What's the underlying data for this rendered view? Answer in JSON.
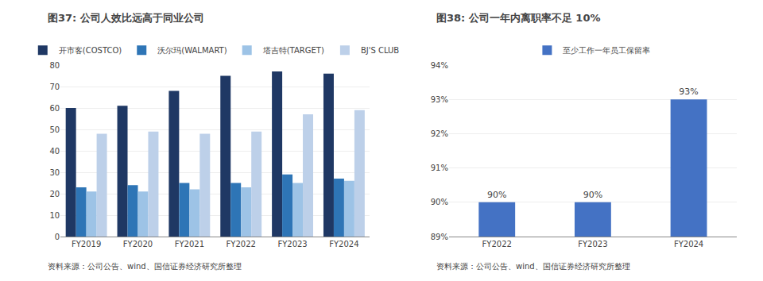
{
  "chart_data": [
    {
      "type": "bar",
      "title": "图37: 公司人效比远高于同业公司",
      "categories": [
        "FY2019",
        "FY2020",
        "FY2021",
        "FY2022",
        "FY2023",
        "FY2024"
      ],
      "series": [
        {
          "name": "开市客(COSTCO)",
          "color": "#1f3864",
          "values": [
            60,
            61,
            68,
            75,
            77,
            76
          ]
        },
        {
          "name": "沃尔玛(WALMART)",
          "color": "#2e75b6",
          "values": [
            23,
            24,
            25,
            25,
            29,
            27
          ]
        },
        {
          "name": "塔吉特(TARGET)",
          "color": "#9dc3e6",
          "values": [
            21,
            21,
            22,
            23,
            25,
            26
          ]
        },
        {
          "name": "BJ'S CLUB",
          "color": "#bdd0e9",
          "values": [
            48,
            49,
            48,
            49,
            57,
            59
          ]
        }
      ],
      "ylim": [
        0,
        80
      ],
      "yticks": [
        0,
        10,
        20,
        30,
        40,
        50,
        60,
        70,
        80
      ],
      "legend": "top",
      "annotations": [
        "资料来源：公司公告、wind、国信证券经济研究所整理"
      ]
    },
    {
      "type": "bar",
      "title": "图38: 公司一年内离职率不足 10%",
      "categories": [
        "FY2022",
        "FY2023",
        "FY2024"
      ],
      "series": [
        {
          "name": "至少工作一年员工保留率",
          "color": "#4472c4",
          "values": [
            90,
            90,
            93
          ],
          "value_labels": [
            "90%",
            "90%",
            "93%"
          ]
        }
      ],
      "ylim": [
        89,
        94
      ],
      "yticks": [
        {
          "value": 89,
          "label": "89%"
        },
        {
          "value": 90,
          "label": "90%"
        },
        {
          "value": 91,
          "label": "91%"
        },
        {
          "value": 92,
          "label": "92%"
        },
        {
          "value": 93,
          "label": "93%"
        },
        {
          "value": 94,
          "label": "94%"
        }
      ],
      "data_labels": true,
      "legend": "top",
      "annotations": [
        "资料来源：公司公告、wind、国信证券经济研究所整理"
      ]
    }
  ]
}
